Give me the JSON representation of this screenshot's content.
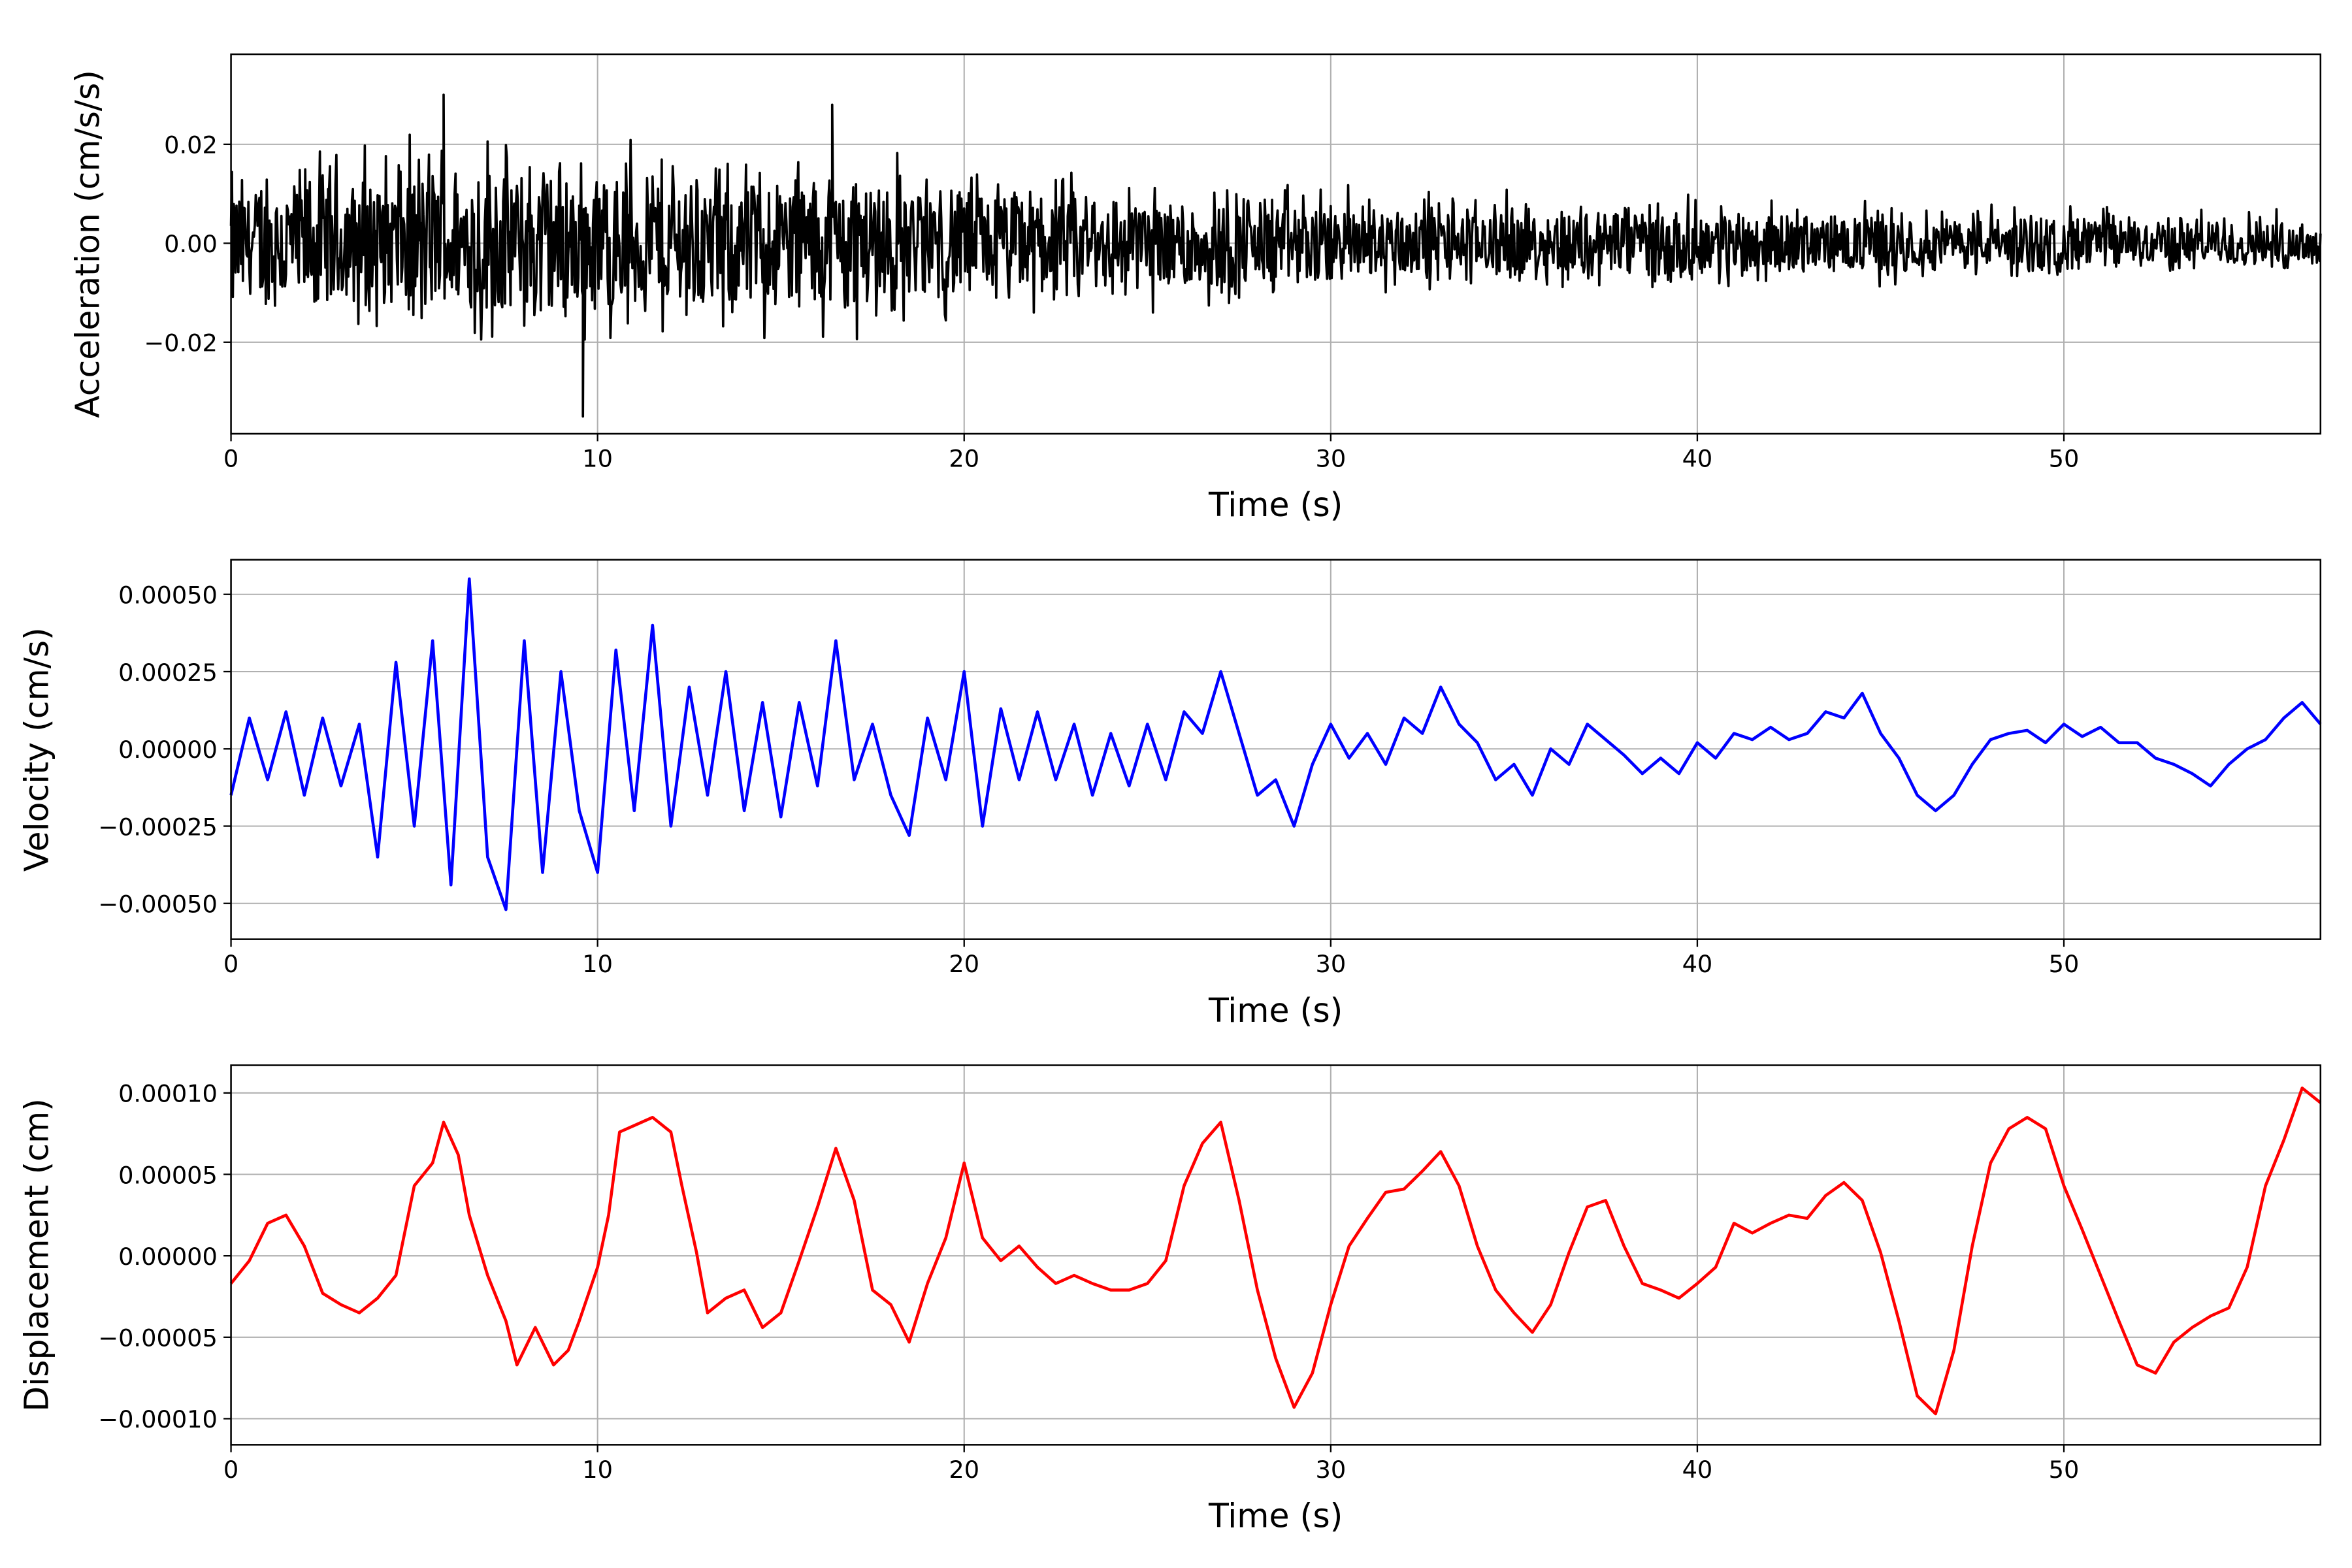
{
  "chart_data": [
    {
      "type": "line",
      "title": "",
      "xlabel": "Time (s)",
      "ylabel": "Acceleration (cm/s/s)",
      "xlim": [
        0,
        57
      ],
      "ylim": [
        -0.0385,
        0.0382
      ],
      "xticks": [
        0,
        10,
        20,
        30,
        40,
        50
      ],
      "xtick_labels": [
        "0",
        "10",
        "20",
        "30",
        "40",
        "50"
      ],
      "yticks": [
        -0.02,
        0.0,
        0.02
      ],
      "ytick_labels": [
        "−0.02",
        "0.00",
        "0.02"
      ],
      "grid": true,
      "color": "#000000",
      "series_kind": "dense noise; typical amplitude envelope per 1 s (cm/s/s)",
      "envelope_t": [
        0,
        1,
        2,
        3,
        4,
        5,
        6,
        7,
        8,
        9,
        10,
        11,
        12,
        13,
        14,
        15,
        16,
        17,
        18,
        19,
        20,
        21,
        22,
        23,
        24,
        25,
        26,
        27,
        28,
        29,
        30,
        31,
        32,
        33,
        34,
        35,
        36,
        37,
        38,
        39,
        40,
        41,
        42,
        43,
        44,
        45,
        46,
        47,
        48,
        49,
        50,
        51,
        52,
        53,
        54,
        55,
        56,
        57
      ],
      "envelope": [
        0.015,
        0.016,
        0.017,
        0.017,
        0.018,
        0.019,
        0.019,
        0.02,
        0.02,
        0.02,
        0.019,
        0.019,
        0.018,
        0.018,
        0.018,
        0.018,
        0.018,
        0.017,
        0.016,
        0.015,
        0.014,
        0.014,
        0.013,
        0.013,
        0.013,
        0.012,
        0.012,
        0.012,
        0.011,
        0.011,
        0.01,
        0.01,
        0.01,
        0.01,
        0.009,
        0.009,
        0.009,
        0.009,
        0.009,
        0.009,
        0.008,
        0.008,
        0.008,
        0.007,
        0.007,
        0.008,
        0.007,
        0.007,
        0.007,
        0.007,
        0.007,
        0.007,
        0.006,
        0.006,
        0.006,
        0.006,
        0.006,
        0.006
      ],
      "peaks": [
        {
          "x": 5.8,
          "y": 0.03
        },
        {
          "x": 9.6,
          "y": -0.035
        },
        {
          "x": 16.4,
          "y": 0.028
        }
      ]
    },
    {
      "type": "line",
      "title": "",
      "xlabel": "Time (s)",
      "ylabel": "Velocity (cm/s)",
      "xlim": [
        0,
        57
      ],
      "ylim": [
        -0.000616,
        0.000612
      ],
      "xticks": [
        0,
        10,
        20,
        30,
        40,
        50
      ],
      "xtick_labels": [
        "0",
        "10",
        "20",
        "30",
        "40",
        "50"
      ],
      "yticks": [
        -0.0005,
        -0.00025,
        0.0,
        0.00025,
        0.0005
      ],
      "ytick_labels": [
        "−0.00050",
        "−0.00025",
        "0.00000",
        "0.00025",
        "0.00050"
      ],
      "grid": true,
      "color": "#0000ff",
      "x_step": 0.5,
      "y": [
        -0.00015,
        0.0001,
        -0.0001,
        0.00012,
        -0.00015,
        0.0001,
        -0.00012,
        8e-05,
        -0.00035,
        0.00028,
        -0.00025,
        0.00035,
        -0.00044,
        0.00055,
        -0.00035,
        -0.00052,
        0.00035,
        -0.0004,
        0.00025,
        -0.0002,
        -0.0004,
        0.00032,
        -0.0002,
        0.0004,
        -0.00025,
        0.0002,
        -0.00015,
        0.00025,
        -0.0002,
        0.00015,
        -0.00022,
        0.00015,
        -0.00012,
        0.00035,
        -0.0001,
        8e-05,
        -0.00015,
        -0.00028,
        0.0001,
        -0.0001,
        0.00025,
        -0.00025,
        0.00013,
        -0.0001,
        0.00012,
        -0.0001,
        8e-05,
        -0.00015,
        5e-05,
        -0.00012,
        8e-05,
        -0.0001,
        0.00012,
        5e-05,
        0.00025,
        5e-05,
        -0.00015,
        -0.0001,
        -0.00025,
        -5e-05,
        8e-05,
        -3e-05,
        5e-05,
        -5e-05,
        0.0001,
        5e-05,
        0.0002,
        8e-05,
        2e-05,
        -0.0001,
        -5e-05,
        -0.00015,
        0,
        -5e-05,
        8e-05,
        3e-05,
        -2e-05,
        -8e-05,
        -3e-05,
        -8e-05,
        2e-05,
        -3e-05,
        5e-05,
        3e-05,
        7e-05,
        3e-05,
        5e-05,
        0.00012,
        0.0001,
        0.00018,
        5e-05,
        -3e-05,
        -0.00015,
        -0.0002,
        -0.00015,
        -5e-05,
        3e-05,
        5e-05,
        6e-05,
        2e-05,
        8e-05,
        4e-05,
        7e-05,
        2e-05,
        2e-05,
        -3e-05,
        -5e-05,
        -8e-05,
        -0.00012,
        -5e-05,
        0,
        3e-05,
        0.0001,
        0.00015,
        8e-05
      ]
    },
    {
      "type": "line",
      "title": "",
      "xlabel": "Time (s)",
      "ylabel": "Displacement (cm)",
      "xlim": [
        0,
        57
      ],
      "ylim": [
        -0.000116,
        0.000117
      ],
      "xticks": [
        0,
        10,
        20,
        30,
        40,
        50
      ],
      "xtick_labels": [
        "0",
        "10",
        "20",
        "30",
        "40",
        "50"
      ],
      "yticks": [
        -0.0001,
        -5e-05,
        0.0,
        5e-05,
        0.0001
      ],
      "ytick_labels": [
        "−0.00010",
        "−0.00005",
        "0.00000",
        "0.00005",
        "0.00010"
      ],
      "grid": true,
      "color": "#ff0000",
      "x": [
        0,
        0.5,
        1,
        1.5,
        2,
        2.5,
        3,
        3.5,
        4,
        4.5,
        5,
        5.5,
        5.8,
        6.2,
        6.5,
        7,
        7.5,
        7.8,
        8.3,
        8.8,
        9.2,
        9.5,
        10,
        10.3,
        10.6,
        11,
        11.5,
        12,
        12.3,
        12.7,
        13,
        13.5,
        14,
        14.5,
        15,
        15.5,
        16,
        16.5,
        17,
        17.5,
        18,
        18.5,
        19,
        19.5,
        20,
        20.5,
        21,
        21.5,
        22,
        22.5,
        23,
        23.5,
        24,
        24.5,
        25,
        25.5,
        26,
        26.5,
        27,
        27.5,
        28,
        28.5,
        29,
        29.5,
        30,
        30.5,
        31,
        31.5,
        32,
        32.5,
        33,
        33.5,
        34,
        34.5,
        35,
        35.5,
        36,
        36.5,
        37,
        37.5,
        38,
        38.5,
        39,
        39.5,
        40,
        40.5,
        41,
        41.5,
        42,
        42.5,
        43,
        43.5,
        44,
        44.5,
        45,
        45.5,
        46,
        46.5,
        47,
        47.5,
        48,
        48.5,
        49,
        49.5,
        50,
        50.5,
        51,
        51.5,
        52,
        52.5,
        53,
        53.5,
        54,
        54.5,
        55,
        55.5,
        56,
        56.5,
        57
      ],
      "y": [
        -1.7e-05,
        -3e-06,
        2e-05,
        2.5e-05,
        6e-06,
        -2.3e-05,
        -3e-05,
        -3.5e-05,
        -2.6e-05,
        -1.2e-05,
        4.3e-05,
        5.7e-05,
        8.2e-05,
        6.2e-05,
        2.5e-05,
        -1.2e-05,
        -4e-05,
        -6.7e-05,
        -4.4e-05,
        -6.7e-05,
        -5.8e-05,
        -4e-05,
        -7e-06,
        2.5e-05,
        7.6e-05,
        8e-05,
        8.5e-05,
        7.6e-05,
        4.3e-05,
        2e-06,
        -3.5e-05,
        -2.6e-05,
        -2.1e-05,
        -4.4e-05,
        -3.5e-05,
        -3e-06,
        3e-05,
        6.6e-05,
        3.4e-05,
        -2.1e-05,
        -3e-05,
        -5.3e-05,
        -1.7e-05,
        1.1e-05,
        5.7e-05,
        1.1e-05,
        -3e-06,
        6e-06,
        -7e-06,
        -1.7e-05,
        -1.2e-05,
        -1.7e-05,
        -2.1e-05,
        -2.1e-05,
        -1.7e-05,
        -3e-06,
        4.3e-05,
        6.9e-05,
        8.2e-05,
        3.4e-05,
        -2.1e-05,
        -6.3e-05,
        -9.3e-05,
        -7.2e-05,
        -3e-05,
        6e-06,
        2.3e-05,
        3.9e-05,
        4.1e-05,
        5.2e-05,
        6.4e-05,
        4.3e-05,
        6e-06,
        -2.1e-05,
        -3.5e-05,
        -4.7e-05,
        -3e-05,
        2e-06,
        3e-05,
        3.4e-05,
        6e-06,
        -1.7e-05,
        -2.1e-05,
        -2.6e-05,
        -1.7e-05,
        -7e-06,
        2e-05,
        1.4e-05,
        2e-05,
        2.5e-05,
        2.3e-05,
        3.7e-05,
        4.5e-05,
        3.4e-05,
        2e-06,
        -4e-05,
        -8.6e-05,
        -9.7e-05,
        -5.8e-05,
        6e-06,
        5.7e-05,
        7.8e-05,
        8.5e-05,
        7.8e-05,
        4.3e-05,
        1.6e-05,
        -1.2e-05,
        -4e-05,
        -6.7e-05,
        -7.2e-05,
        -5.3e-05,
        -4.4e-05,
        -3.7e-05,
        -3.2e-05,
        -7e-06,
        4.3e-05,
        7.1e-05,
        0.000103,
        9.4e-05
      ]
    }
  ]
}
